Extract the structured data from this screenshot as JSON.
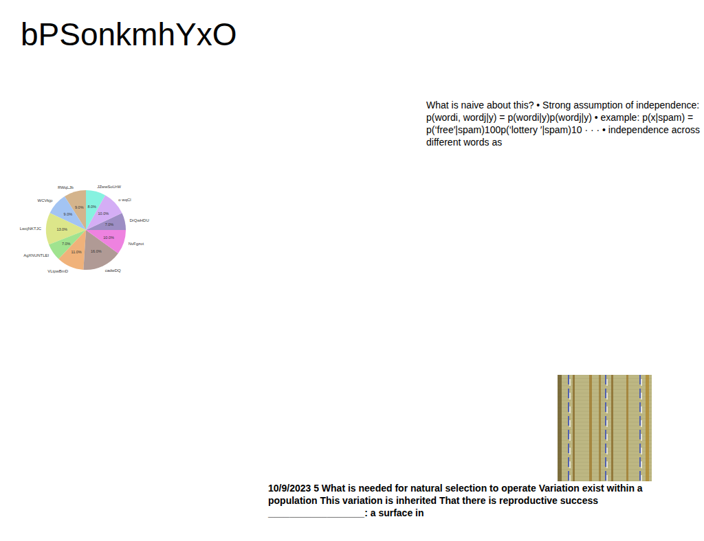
{
  "title": "bPSonkmhYxO",
  "chart_data": {
    "type": "pie",
    "categories": [
      "RWqLJb",
      "WCVkjp",
      "LwcjNKTJC",
      "AgXNUNTLEI",
      "VLtpwBmD",
      "cadwDQ",
      "NvFgzot",
      "DrQwHDU",
      "o wqCl",
      "JZwwSoUrW"
    ],
    "values": [
      9,
      9,
      13,
      7,
      11,
      16,
      10,
      7,
      10,
      8
    ],
    "value_labels": [
      "9.0%",
      "9.0%",
      "13.0%",
      "7.0%",
      "11.0%",
      "16.0%",
      "10.0%",
      "7.0%",
      "10.0%",
      "8.0%"
    ],
    "colors": [
      "#d4b48c",
      "#a3c4f3",
      "#dce68a",
      "#a0e38f",
      "#f0b27a",
      "#b09a95",
      "#ee82e0",
      "#9d8ec4",
      "#d4aef5",
      "#86f2e0"
    ],
    "data_labels": true
  },
  "text_blocks": [
    "What is naive about this? • Strong assumption of independence: p(wordi, wordj|y) = p(wordi|y)p(wordj|y) • example: p(x|spam) = p(‘free′|spam)100p(‘lottery ′|spam)10 · · · • independence across different words as",
    "10/9/2023 5 What is needed for natural selection to operate Variation exist within a population This variation is inherited That there is reproductive success __________________: a surface in"
  ]
}
